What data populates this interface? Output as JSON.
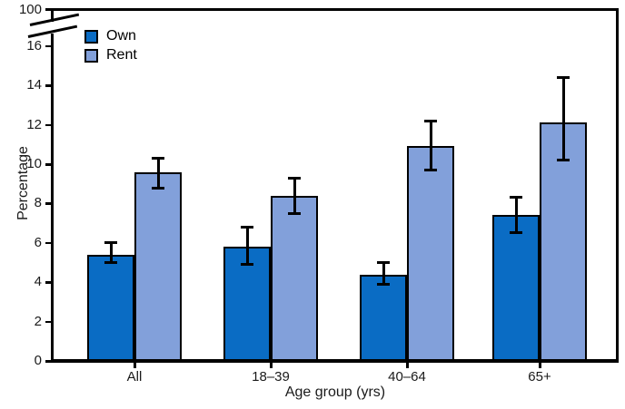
{
  "chart_data": {
    "type": "bar",
    "title": "",
    "xlabel": "Age group (yrs)",
    "ylabel": "Percentage",
    "categories": [
      "All",
      "18–39",
      "40–64",
      "65+"
    ],
    "series": [
      {
        "name": "Own",
        "color": "#0a6cc4",
        "values": [
          5.4,
          5.8,
          4.4,
          7.4
        ],
        "ci_low": [
          5.0,
          4.9,
          3.9,
          6.5
        ],
        "ci_high": [
          6.0,
          6.8,
          5.0,
          8.3
        ]
      },
      {
        "name": "Rent",
        "color": "#82a0da",
        "values": [
          9.6,
          8.4,
          10.9,
          12.1
        ],
        "ci_low": [
          8.8,
          7.5,
          9.7,
          10.2
        ],
        "ci_high": [
          10.3,
          9.3,
          12.2,
          14.4
        ]
      }
    ],
    "y_ticks": [
      0,
      2,
      4,
      6,
      8,
      10,
      12,
      14,
      16
    ],
    "y_break_label": "100",
    "ylim": [
      0,
      16.5
    ],
    "axis_break": true,
    "error_bars": true,
    "grid": false,
    "legend_position": "top-left",
    "axis_color": "#000000",
    "text_color": "#1a1a1a"
  }
}
